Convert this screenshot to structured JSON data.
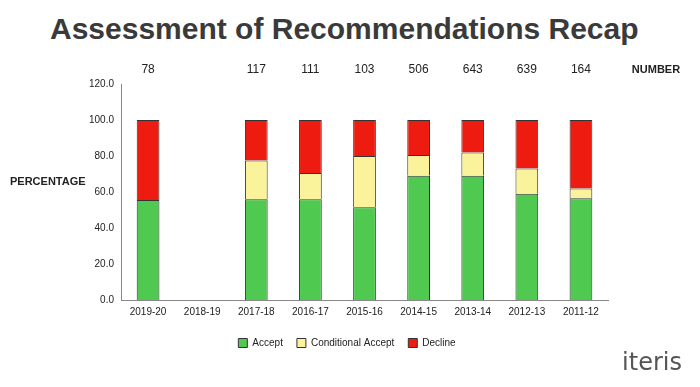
{
  "title": "Assessment of Recommendations Recap",
  "logo": "iteris",
  "chart_data": {
    "type": "bar",
    "stacked": true,
    "grid": false,
    "legend": "bottom",
    "y_label": "PERCENTAGE",
    "totals_label": "NUMBER",
    "categories": [
      "2019-20",
      "2018-19",
      "2017-18",
      "2016-17",
      "2015-16",
      "2014-15",
      "2013-14",
      "2012-13",
      "2011-12"
    ],
    "totals": [
      78,
      null,
      117,
      111,
      103,
      506,
      643,
      639,
      164
    ],
    "series": [
      {
        "name": "Accept",
        "color": "#4fc94f",
        "values": [
          55.5,
          null,
          56,
          56,
          51.5,
          69,
          69,
          59,
          56.5
        ]
      },
      {
        "name": "Conditional Accept",
        "color": "#fbf39b",
        "values": [
          0,
          null,
          21.5,
          14.5,
          28.5,
          11.5,
          13,
          14,
          5.5
        ]
      },
      {
        "name": "Decline",
        "color": "#ee1c10",
        "values": [
          44.5,
          null,
          22.5,
          29.5,
          20,
          19.5,
          18,
          27,
          38
        ]
      }
    ],
    "ylim": [
      0,
      120
    ],
    "yticks": [
      {
        "value": 0,
        "label": "0.0"
      },
      {
        "value": 20,
        "label": "20.0"
      },
      {
        "value": 40,
        "label": "40.0"
      },
      {
        "value": 60,
        "label": "60.0"
      },
      {
        "value": 80,
        "label": "80.0"
      },
      {
        "value": 100,
        "label": "100.0"
      },
      {
        "value": 120,
        "label": "120.0"
      }
    ]
  }
}
